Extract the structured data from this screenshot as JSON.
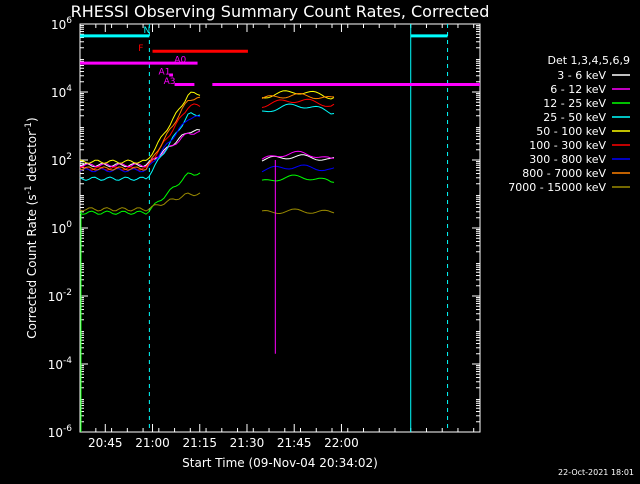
{
  "chart_data": {
    "type": "line",
    "title": "RHESSI Observing Summary Count Rates, Corrected",
    "xlabel": "Start Time (09-Nov-04 20:34:02)",
    "ylabel": "Corrected Count Rate (s",
    "ylabel_sup1": "-1",
    "ylabel_mid": " detector",
    "ylabel_sup2": "-1",
    "ylabel_end": ")",
    "footer": "22-Oct-2021 18:01",
    "x_range_minutes": [
      -4.03,
      123.0
    ],
    "x_tick_labels": [
      "20:45",
      "21:00",
      "21:15",
      "21:30",
      "21:45",
      "22:00"
    ],
    "x_tick_minutes": [
      4,
      19,
      34,
      49,
      64,
      79
    ],
    "y_scale": "log",
    "y_range_log10": [
      -6,
      6
    ],
    "y_tick_mantissa": "10",
    "y_tick_exponents": [
      "-6",
      "-4",
      "-2",
      "0",
      "2",
      "4",
      "6"
    ],
    "legend_header": "Det 1,3,4,5,6,9",
    "series": [
      {
        "name": "3 - 6 keV",
        "color": "#ffffff"
      },
      {
        "name": "6 - 12 keV",
        "color": "#ff00ff"
      },
      {
        "name": "12 - 25 keV",
        "color": "#00ff00"
      },
      {
        "name": "25 - 50 keV",
        "color": "#00ffff"
      },
      {
        "name": "50 - 100 keV",
        "color": "#ffff00"
      },
      {
        "name": "100 - 300 keV",
        "color": "#ff0000"
      },
      {
        "name": "300 - 800 keV",
        "color": "#0000ff"
      },
      {
        "name": "800 - 7000 keV",
        "color": "#ff8000"
      },
      {
        "name": "7000 - 15000 keV",
        "color": "#9a8a00"
      }
    ],
    "flags": [
      {
        "label": "N",
        "color": "#00ffff"
      },
      {
        "label": "F",
        "color": "#ff0000"
      },
      {
        "label": "A0",
        "color": "#ff00ff"
      },
      {
        "label": "A1",
        "color": "#ff00ff"
      },
      {
        "label": "A3",
        "color": "#ff00ff"
      }
    ]
  }
}
